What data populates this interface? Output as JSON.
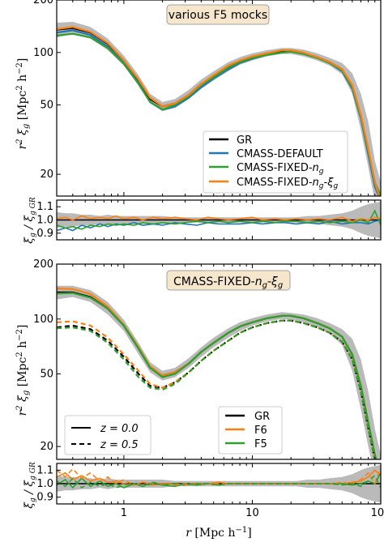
{
  "colors": {
    "GR": "#000000",
    "CMASS-DEFAULT": "#1f77b4",
    "CMASS-FIXED-ng": "#2ca02c",
    "CMASS-FIXED-ng-xig": "#ff7f0e",
    "band": "#b3b3b3",
    "tag_bg": "#f5e6cc",
    "tag_border": "#a0a0a0"
  },
  "xlabel": "r  [Mpc h⁻¹]",
  "chart_data": [
    {
      "type": "line",
      "tag": "various F5 mocks",
      "ylabel": "r² ξ_g  [Mpc² h⁻²]",
      "xscale": "log",
      "yscale": "log",
      "xlim": [
        0.3,
        100
      ],
      "ylim": [
        15,
        200
      ],
      "xticks": [
        "1",
        "10",
        "100"
      ],
      "yticks": [
        "20",
        "50",
        "100",
        "200"
      ],
      "legend": {
        "placement": "lower-right",
        "entries": [
          "GR",
          "CMASS-DEFAULT",
          "CMASS-FIXED-ng",
          "CMASS-FIXED-ng-ξg"
        ]
      },
      "x": [
        0.3,
        0.4,
        0.55,
        0.75,
        1.0,
        1.3,
        1.6,
        2.0,
        2.5,
        3.2,
        4.0,
        5.0,
        6.5,
        8.0,
        10,
        13,
        17,
        20,
        25,
        32,
        40,
        50,
        60,
        70,
        80,
        90,
        100
      ],
      "band": {
        "lower": [
          122,
          128,
          120,
          103,
          84,
          65,
          51,
          46,
          48,
          54,
          62,
          69,
          78,
          85,
          90,
          95,
          98,
          98,
          95,
          90,
          84,
          75,
          58,
          36,
          22,
          14,
          13
        ],
        "upper": [
          148,
          150,
          140,
          120,
          96,
          74,
          58,
          52,
          54,
          61,
          70,
          78,
          88,
          94,
          99,
          103,
          106,
          106,
          104,
          99,
          93,
          87,
          76,
          58,
          40,
          24,
          18
        ]
      },
      "series": [
        {
          "name": "GR",
          "values": [
            135,
            138,
            130,
            112,
            90,
            69,
            54,
            49,
            51,
            57,
            66,
            73,
            83,
            89,
            94,
            98,
            102,
            102,
            99,
            94,
            88,
            80,
            64,
            43,
            27,
            18,
            14
          ]
        },
        {
          "name": "CMASS-DEFAULT",
          "values": [
            130,
            134,
            126,
            108,
            87,
            67,
            52,
            47,
            49,
            55,
            63,
            71,
            80,
            87,
            92,
            97,
            100,
            101,
            98,
            93,
            87,
            78,
            62,
            42,
            26,
            17,
            14
          ]
        },
        {
          "name": "CMASS-FIXED-ng",
          "values": [
            125,
            128,
            122,
            106,
            86,
            66,
            52,
            47,
            50,
            56,
            65,
            72,
            82,
            88,
            93,
            97,
            100,
            101,
            98,
            93,
            87,
            79,
            63,
            43,
            27,
            18,
            15
          ]
        },
        {
          "name": "CMASS-FIXED-ng-ξg",
          "values": [
            136,
            140,
            131,
            113,
            90,
            70,
            55,
            49,
            51,
            57,
            66,
            74,
            84,
            90,
            95,
            99,
            103,
            103,
            100,
            94,
            88,
            80,
            65,
            44,
            28,
            18,
            14
          ]
        }
      ]
    },
    {
      "type": "line",
      "ylabel": "ξ_g / ξ_g GR",
      "xscale": "log",
      "ylim": [
        0.85,
        1.15
      ],
      "yticks": [
        "0.9",
        "1.0",
        "1.1"
      ],
      "x": [
        0.3,
        0.35,
        0.4,
        0.47,
        0.55,
        0.65,
        0.75,
        0.87,
        1.0,
        1.2,
        1.4,
        1.7,
        2.0,
        2.5,
        3.0,
        3.7,
        4.5,
        5.5,
        6.5,
        8.0,
        10,
        12,
        15,
        18,
        22,
        27,
        33,
        40,
        50,
        60,
        70,
        80,
        90,
        100
      ],
      "band": {
        "lower": [
          0.94,
          0.95,
          0.95,
          0.96,
          0.96,
          0.97,
          0.96,
          0.97,
          0.97,
          0.97,
          0.97,
          0.97,
          0.97,
          0.98,
          0.98,
          0.98,
          0.98,
          0.98,
          0.98,
          0.98,
          0.98,
          0.98,
          0.98,
          0.98,
          0.98,
          0.97,
          0.97,
          0.96,
          0.95,
          0.93,
          0.9,
          0.88,
          0.87,
          0.86
        ],
        "upper": [
          1.06,
          1.05,
          1.05,
          1.04,
          1.04,
          1.03,
          1.04,
          1.03,
          1.03,
          1.03,
          1.03,
          1.03,
          1.03,
          1.02,
          1.02,
          1.02,
          1.02,
          1.02,
          1.02,
          1.02,
          1.02,
          1.02,
          1.02,
          1.02,
          1.02,
          1.03,
          1.03,
          1.04,
          1.05,
          1.07,
          1.1,
          1.12,
          1.13,
          1.14
        ]
      },
      "series": [
        {
          "name": "GR",
          "values": [
            1.0,
            1.0,
            1.0,
            1.0,
            1.0,
            1.0,
            1.0,
            1.0,
            1.0,
            1.0,
            1.0,
            1.0,
            1.0,
            1.0,
            1.0,
            1.0,
            1.0,
            1.0,
            1.0,
            1.0,
            1.0,
            1.0,
            1.0,
            1.0,
            1.0,
            1.0,
            1.0,
            1.0,
            1.0,
            1.0,
            1.0,
            1.0,
            1.0,
            1.0
          ]
        },
        {
          "name": "CMASS-DEFAULT",
          "values": [
            0.92,
            0.94,
            0.92,
            0.96,
            0.94,
            0.97,
            0.95,
            0.97,
            0.96,
            0.98,
            0.96,
            0.97,
            0.96,
            0.98,
            0.97,
            0.96,
            0.98,
            0.97,
            0.97,
            0.97,
            0.98,
            0.97,
            0.98,
            0.98,
            0.97,
            0.98,
            0.97,
            0.99,
            0.97,
            0.98,
            0.98,
            0.97,
            0.99,
            1.0
          ]
        },
        {
          "name": "CMASS-FIXED-ng",
          "values": [
            0.96,
            0.94,
            0.95,
            0.93,
            0.96,
            0.95,
            0.97,
            0.96,
            0.97,
            0.96,
            0.98,
            0.97,
            0.98,
            0.97,
            0.98,
            0.99,
            0.98,
            0.99,
            0.98,
            0.99,
            0.98,
            0.99,
            0.98,
            0.99,
            0.99,
            0.98,
            0.99,
            0.98,
            0.99,
            0.98,
            1.0,
            0.98,
            1.07,
            0.96
          ]
        },
        {
          "name": "CMASS-FIXED-ng-ξg",
          "values": [
            1.01,
            1.02,
            1.0,
            1.03,
            1.01,
            1.02,
            1.01,
            1.03,
            1.01,
            1.02,
            1.0,
            1.02,
            1.01,
            1.02,
            1.01,
            1.0,
            1.02,
            1.01,
            1.0,
            1.01,
            1.02,
            1.0,
            1.01,
            1.0,
            1.01,
            1.0,
            1.01,
            1.0,
            1.02,
            0.99,
            1.01,
            1.0,
            1.02,
            1.01
          ]
        }
      ]
    },
    {
      "type": "line",
      "tag": "CMASS-FIXED-n_g-ξ_g",
      "ylabel": "r² ξ_g  [Mpc² h⁻²]",
      "xscale": "log",
      "yscale": "log",
      "xlim": [
        0.3,
        100
      ],
      "ylim": [
        17,
        200
      ],
      "yticks": [
        "20",
        "50",
        "100",
        "200"
      ],
      "legend": {
        "placement": "lower-right",
        "entries": [
          "GR",
          "F6",
          "F5"
        ]
      },
      "linestyle_legend": {
        "placement": "lower-left",
        "entries": [
          {
            "style": "solid",
            "label": "z = 0.0"
          },
          {
            "style": "dashed",
            "label": "z = 0.5"
          }
        ]
      },
      "x": [
        0.3,
        0.4,
        0.55,
        0.75,
        1.0,
        1.3,
        1.6,
        2.0,
        2.5,
        3.2,
        4.0,
        5.0,
        6.5,
        8.0,
        10,
        13,
        17,
        20,
        25,
        32,
        40,
        50,
        60,
        70,
        80,
        90,
        100
      ],
      "band": {
        "lower": [
          128,
          132,
          124,
          106,
          86,
          64,
          51,
          46,
          48,
          54,
          62,
          70,
          79,
          86,
          92,
          97,
          100,
          99,
          96,
          90,
          83,
          72,
          52,
          32,
          20,
          14,
          12
        ],
        "upper": [
          152,
          152,
          144,
          124,
          99,
          74,
          58,
          52,
          54,
          61,
          70,
          79,
          89,
          96,
          101,
          106,
          109,
          108,
          106,
          101,
          95,
          88,
          78,
          60,
          40,
          25,
          18
        ]
      },
      "series": [
        {
          "name": "GR z=0.0",
          "label": "GR",
          "style": "solid",
          "values": [
            140,
            140,
            132,
            114,
            92,
            69,
            54,
            49,
            51,
            57,
            66,
            74,
            84,
            91,
            96,
            101,
            104,
            104,
            101,
            95,
            89,
            80,
            64,
            43,
            27,
            18,
            14
          ]
        },
        {
          "name": "F6 z=0.0",
          "label": "F6",
          "style": "solid",
          "values": [
            147,
            146,
            137,
            117,
            93,
            70,
            55,
            49,
            51,
            57,
            66,
            74,
            84,
            91,
            96,
            101,
            104,
            104,
            101,
            95,
            89,
            80,
            64,
            43,
            27,
            18,
            14
          ]
        },
        {
          "name": "F5 z=0.0",
          "label": "F5",
          "style": "solid",
          "values": [
            138,
            139,
            131,
            114,
            92,
            69,
            54,
            48,
            50,
            57,
            66,
            74,
            84,
            91,
            96,
            101,
            104,
            104,
            101,
            95,
            89,
            80,
            64,
            43,
            27,
            18,
            14
          ]
        },
        {
          "name": "GR z=0.5",
          "label": "GR",
          "style": "dashed",
          "values": [
            90,
            92,
            88,
            76,
            62,
            50,
            43,
            42,
            45,
            51,
            59,
            67,
            76,
            84,
            90,
            95,
            98,
            98,
            95,
            90,
            84,
            75,
            60,
            40,
            25,
            17,
            14
          ]
        },
        {
          "name": "F6 z=0.5",
          "label": "F6",
          "style": "dashed",
          "values": [
            96,
            97,
            92,
            79,
            64,
            52,
            44,
            42,
            45,
            51,
            59,
            67,
            76,
            84,
            90,
            95,
            98,
            98,
            95,
            90,
            84,
            75,
            60,
            40,
            25,
            17,
            14
          ]
        },
        {
          "name": "F5 z=0.5",
          "label": "F5",
          "style": "dashed",
          "values": [
            89,
            90,
            86,
            74,
            60,
            48,
            42,
            41,
            44,
            51,
            59,
            67,
            76,
            84,
            90,
            95,
            98,
            98,
            95,
            90,
            84,
            75,
            60,
            40,
            25,
            17,
            14
          ]
        }
      ]
    },
    {
      "type": "line",
      "ylabel": "ξ_g / ξ_g GR",
      "xscale": "log",
      "ylim": [
        0.85,
        1.15
      ],
      "xticks": [
        "1",
        "10",
        "100"
      ],
      "yticks": [
        "0.9",
        "1.0",
        "1.1"
      ],
      "x": [
        0.3,
        0.35,
        0.4,
        0.47,
        0.55,
        0.65,
        0.75,
        0.87,
        1.0,
        1.2,
        1.4,
        1.7,
        2.0,
        2.5,
        3.0,
        3.7,
        4.5,
        5.5,
        6.5,
        8.0,
        10,
        12,
        15,
        18,
        22,
        27,
        33,
        40,
        50,
        60,
        70,
        80,
        90,
        100
      ],
      "band": {
        "lower": [
          0.94,
          0.95,
          0.95,
          0.96,
          0.96,
          0.97,
          0.96,
          0.97,
          0.97,
          0.97,
          0.97,
          0.97,
          0.97,
          0.98,
          0.98,
          0.98,
          0.98,
          0.98,
          0.98,
          0.98,
          0.98,
          0.98,
          0.98,
          0.98,
          0.98,
          0.97,
          0.97,
          0.96,
          0.95,
          0.93,
          0.9,
          0.88,
          0.87,
          0.86
        ],
        "upper": [
          1.06,
          1.05,
          1.05,
          1.04,
          1.04,
          1.03,
          1.04,
          1.03,
          1.03,
          1.03,
          1.03,
          1.03,
          1.03,
          1.02,
          1.02,
          1.02,
          1.02,
          1.02,
          1.02,
          1.02,
          1.02,
          1.02,
          1.02,
          1.02,
          1.02,
          1.03,
          1.03,
          1.04,
          1.05,
          1.07,
          1.1,
          1.12,
          1.13,
          1.14
        ]
      },
      "series": [
        {
          "name": "GR z=0.0",
          "style": "solid",
          "values": [
            1.0,
            1.0,
            1.0,
            1.0,
            1.0,
            1.0,
            1.0,
            1.0,
            1.0,
            1.0,
            1.0,
            1.0,
            1.0,
            1.0,
            1.0,
            1.0,
            1.0,
            1.0,
            1.0,
            1.0,
            1.0,
            1.0,
            1.0,
            1.0,
            1.0,
            1.0,
            1.0,
            1.0,
            1.0,
            1.0,
            1.0,
            1.0,
            1.0,
            1.0
          ]
        },
        {
          "name": "F6 z=0.0",
          "style": "solid",
          "values": [
            1.05,
            1.08,
            1.03,
            1.06,
            1.02,
            1.04,
            1.01,
            1.02,
            1.0,
            0.99,
            1.01,
            0.99,
            1.0,
            1.0,
            0.99,
            1.0,
            1.0,
            1.01,
            1.0,
            1.0,
            1.0,
            1.0,
            1.0,
            1.0,
            1.0,
            1.0,
            1.0,
            1.0,
            1.0,
            1.01,
            1.02,
            1.05,
            1.1,
            1.06
          ]
        },
        {
          "name": "F5 z=0.0",
          "style": "solid",
          "values": [
            0.99,
            1.03,
            0.97,
            1.04,
            0.98,
            1.02,
            0.98,
            1.0,
            0.97,
            1.0,
            0.98,
            1.01,
            0.99,
            0.98,
            1.0,
            0.99,
            1.0,
            0.99,
            1.0,
            1.0,
            1.0,
            1.0,
            1.0,
            1.0,
            1.0,
            1.0,
            1.0,
            1.0,
            1.0,
            0.99,
            1.0,
            1.02,
            1.0,
            1.08
          ]
        },
        {
          "name": "F6 z=0.5",
          "style": "dashed",
          "values": [
            1.1,
            1.05,
            1.11,
            1.04,
            1.08,
            1.02,
            1.05,
            1.0,
            1.03,
            0.99,
            1.01,
            1.0,
            1.0,
            0.99,
            1.0,
            1.0,
            1.0,
            1.0,
            1.0,
            1.0,
            1.0,
            1.0,
            1.0,
            1.0,
            1.0,
            1.0,
            1.0,
            1.0,
            1.01,
            1.0,
            1.03,
            1.08,
            1.0,
            1.12
          ]
        },
        {
          "name": "F5 z=0.5",
          "style": "dashed",
          "values": [
            1.02,
            0.98,
            1.04,
            0.97,
            1.01,
            0.98,
            1.0,
            0.97,
            0.99,
            1.0,
            0.98,
            1.0,
            0.99,
            1.0,
            0.99,
            1.0,
            1.0,
            0.99,
            1.0,
            1.0,
            1.0,
            1.0,
            1.0,
            1.0,
            1.0,
            1.0,
            1.0,
            1.0,
            0.99,
            1.0,
            0.98,
            1.02,
            1.06,
            0.97
          ]
        }
      ]
    }
  ]
}
